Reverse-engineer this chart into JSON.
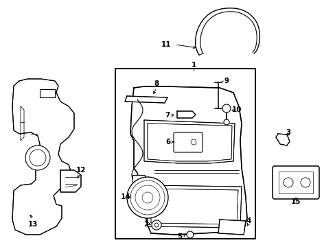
{
  "bg_color": "#ffffff",
  "line_color": "#000000",
  "lw": 0.8,
  "fig_width": 4.89,
  "fig_height": 3.6,
  "dpi": 100,
  "fs": 7.5
}
